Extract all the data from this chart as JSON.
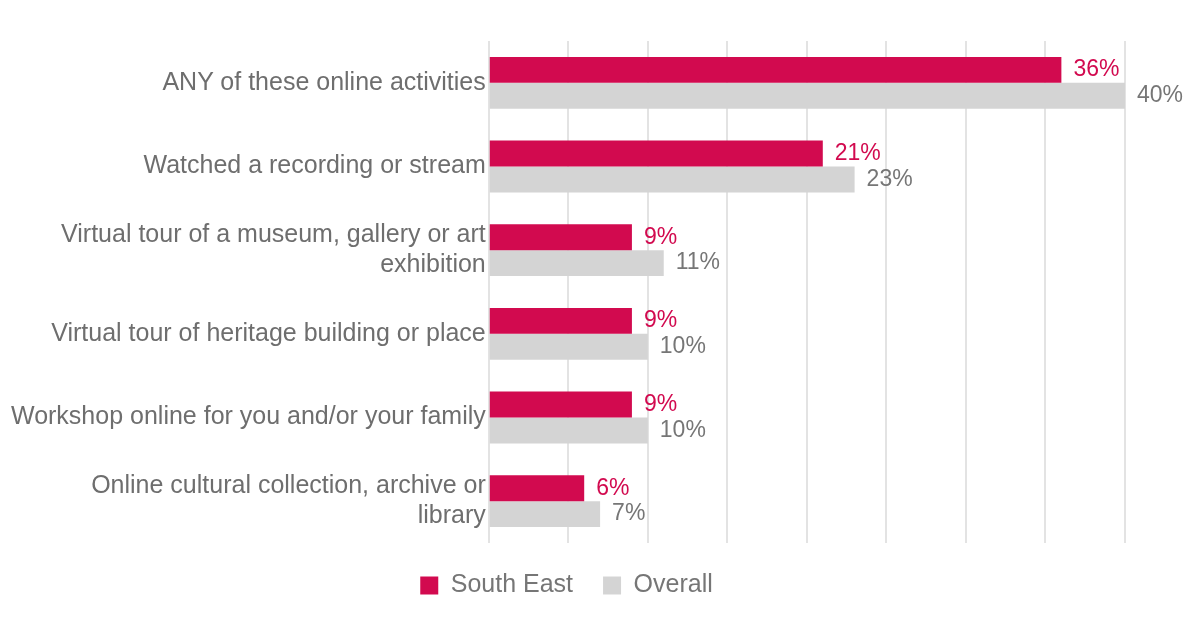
{
  "chart_data": {
    "type": "bar",
    "orientation": "horizontal",
    "categories": [
      "ANY of these online activities",
      "Watched a recording or stream",
      "Virtual tour of a museum, gallery or art exhibition",
      "Virtual tour of heritage building or place",
      "Workshop online for you and/or your family",
      "Online cultural collection, archive or library"
    ],
    "series": [
      {
        "name": "South East",
        "color": "#d20a4f",
        "values": [
          36,
          21,
          9,
          9,
          9,
          6
        ],
        "value_labels": [
          "36%",
          "21%",
          "9%",
          "9%",
          "9%",
          "6%"
        ]
      },
      {
        "name": "Overall",
        "color": "#d4d4d4",
        "values": [
          40,
          23,
          11,
          10,
          10,
          7
        ],
        "value_labels": [
          "40%",
          "23%",
          "11%",
          "10%",
          "10%",
          "7%"
        ]
      }
    ],
    "tick_labels": "y",
    "grid": "x",
    "legend": "bottom"
  }
}
